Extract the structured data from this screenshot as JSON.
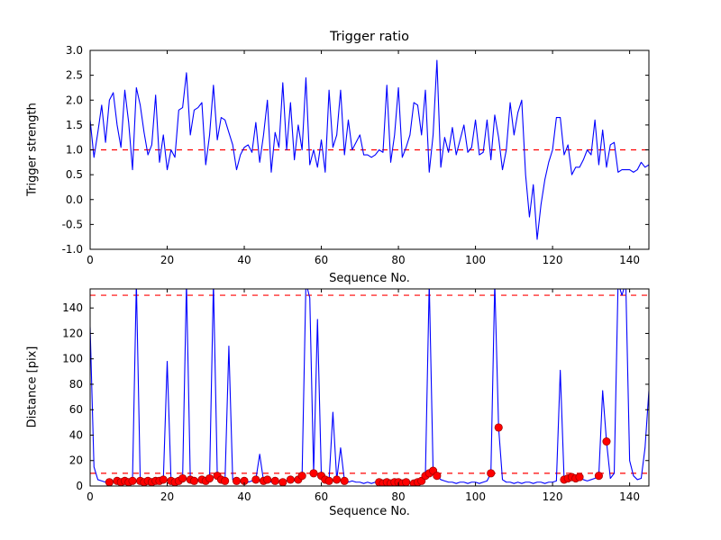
{
  "figure": {
    "background": "#ffffff",
    "axis_color": "#000000",
    "line_color": "#0000ff",
    "dashed_color": "#ff0000",
    "marker_color": "#ff0000",
    "marker_edge": "#990000"
  },
  "chart_data": [
    {
      "type": "line",
      "name": "trigger-ratio",
      "title": "Trigger ratio",
      "xlabel": "Sequence No.",
      "ylabel": "Trigger strength",
      "xlim": [
        0,
        145
      ],
      "ylim": [
        -1.0,
        3.0
      ],
      "xticks": [
        0,
        20,
        40,
        60,
        80,
        100,
        120,
        140
      ],
      "yticks": [
        -1.0,
        -0.5,
        0.0,
        0.5,
        1.0,
        1.5,
        2.0,
        2.5,
        3.0
      ],
      "yticklabels": [
        "-1.0",
        "-0.5",
        "0.0",
        "0.5",
        "1.0",
        "1.5",
        "2.0",
        "2.5",
        "3.0"
      ],
      "grid": false,
      "legend": "none",
      "hlines": [
        1.0
      ],
      "series": [
        {
          "name": "trigger_strength",
          "color": "#0000ff",
          "values": [
            1.6,
            0.85,
            1.35,
            1.9,
            1.15,
            2.0,
            2.15,
            1.5,
            1.05,
            2.2,
            1.55,
            0.6,
            2.25,
            1.9,
            1.35,
            0.9,
            1.1,
            2.1,
            0.75,
            1.3,
            0.6,
            1.0,
            0.85,
            1.8,
            1.85,
            2.55,
            1.3,
            1.8,
            1.85,
            1.95,
            0.7,
            1.3,
            2.3,
            1.2,
            1.65,
            1.6,
            1.35,
            1.1,
            0.6,
            0.9,
            1.05,
            1.1,
            0.95,
            1.55,
            0.75,
            1.3,
            2.0,
            0.55,
            1.35,
            1.05,
            2.35,
            1.0,
            1.95,
            0.8,
            1.5,
            1.0,
            2.45,
            0.7,
            1.0,
            0.65,
            1.2,
            0.55,
            2.2,
            1.05,
            1.3,
            2.2,
            0.9,
            1.6,
            1.0,
            1.15,
            1.3,
            0.9,
            0.9,
            0.85,
            0.9,
            1.0,
            0.95,
            2.3,
            0.75,
            1.3,
            2.25,
            0.85,
            1.05,
            1.3,
            1.95,
            1.9,
            1.3,
            2.2,
            0.55,
            1.3,
            2.8,
            0.65,
            1.25,
            0.95,
            1.45,
            0.9,
            1.2,
            1.5,
            0.95,
            1.05,
            1.6,
            0.9,
            0.95,
            1.6,
            0.8,
            1.7,
            1.25,
            0.6,
            1.0,
            1.95,
            1.3,
            1.75,
            2.0,
            0.5,
            -0.35,
            0.3,
            -0.8,
            -0.1,
            0.4,
            0.75,
            1.0,
            1.65,
            1.65,
            0.9,
            1.1,
            0.5,
            0.65,
            0.65,
            0.8,
            1.0,
            0.9,
            1.6,
            0.7,
            1.4,
            0.65,
            1.1,
            1.15,
            0.55,
            0.6,
            0.6,
            0.6,
            0.55,
            0.6,
            0.75,
            0.65,
            0.7
          ]
        }
      ]
    },
    {
      "type": "line",
      "name": "distance",
      "title": "",
      "xlabel": "Sequence No.",
      "ylabel": "Distance [pix]",
      "xlim": [
        0,
        145
      ],
      "ylim": [
        0,
        155
      ],
      "xticks": [
        0,
        20,
        40,
        60,
        80,
        100,
        120,
        140
      ],
      "yticks": [
        0,
        20,
        40,
        60,
        80,
        100,
        120,
        140
      ],
      "yticklabels": [
        "0",
        "20",
        "40",
        "60",
        "80",
        "100",
        "120",
        "140"
      ],
      "grid": false,
      "legend": "none",
      "hlines": [
        150,
        10
      ],
      "series": [
        {
          "name": "distance_pix",
          "color": "#0000ff",
          "values": [
            125,
            15,
            5,
            4,
            3,
            4,
            3,
            4,
            3,
            4,
            3,
            5,
            160,
            5,
            4,
            3,
            4,
            3,
            4,
            5,
            98,
            4,
            3,
            4,
            6,
            160,
            5,
            4,
            4,
            5,
            4,
            6,
            160,
            8,
            5,
            4,
            110,
            5,
            4,
            3,
            4,
            3,
            4,
            5,
            25,
            4,
            5,
            3,
            4,
            4,
            3,
            4,
            5,
            4,
            5,
            8,
            160,
            148,
            10,
            131,
            8,
            5,
            4,
            58,
            5,
            30,
            4,
            3,
            4,
            3,
            3,
            2,
            3,
            2,
            3,
            3,
            2,
            3,
            2,
            3,
            3,
            2,
            3,
            3,
            2,
            3,
            4,
            8,
            160,
            12,
            8,
            5,
            4,
            3,
            3,
            2,
            3,
            3,
            2,
            3,
            3,
            2,
            3,
            4,
            10,
            160,
            46,
            5,
            3,
            3,
            2,
            3,
            2,
            3,
            3,
            2,
            3,
            3,
            2,
            3,
            3,
            4,
            91,
            5,
            6,
            7,
            6,
            7,
            5,
            4,
            5,
            6,
            8,
            75,
            35,
            6,
            10,
            160,
            150,
            160,
            20,
            8,
            5,
            6,
            30,
            75
          ]
        }
      ],
      "markers": [
        [
          5,
          3
        ],
        [
          7,
          4
        ],
        [
          8,
          3
        ],
        [
          9,
          4
        ],
        [
          10,
          3
        ],
        [
          11,
          4
        ],
        [
          13,
          4
        ],
        [
          14,
          3
        ],
        [
          15,
          4
        ],
        [
          16,
          3
        ],
        [
          17,
          4
        ],
        [
          18,
          4
        ],
        [
          19,
          5
        ],
        [
          21,
          4
        ],
        [
          22,
          3
        ],
        [
          23,
          4
        ],
        [
          24,
          6
        ],
        [
          26,
          5
        ],
        [
          27,
          4
        ],
        [
          29,
          5
        ],
        [
          30,
          4
        ],
        [
          31,
          6
        ],
        [
          33,
          8
        ],
        [
          34,
          5
        ],
        [
          35,
          4
        ],
        [
          38,
          4
        ],
        [
          40,
          4
        ],
        [
          43,
          5
        ],
        [
          45,
          4
        ],
        [
          46,
          5
        ],
        [
          48,
          4
        ],
        [
          50,
          3
        ],
        [
          52,
          5
        ],
        [
          54,
          5
        ],
        [
          55,
          8
        ],
        [
          58,
          10
        ],
        [
          60,
          8
        ],
        [
          61,
          5
        ],
        [
          62,
          4
        ],
        [
          64,
          5
        ],
        [
          66,
          4
        ],
        [
          75,
          3
        ],
        [
          76,
          2
        ],
        [
          77,
          3
        ],
        [
          78,
          2
        ],
        [
          79,
          3
        ],
        [
          80,
          3
        ],
        [
          81,
          2
        ],
        [
          82,
          3
        ],
        [
          84,
          2
        ],
        [
          85,
          3
        ],
        [
          86,
          4
        ],
        [
          87,
          8
        ],
        [
          88,
          10
        ],
        [
          89,
          12
        ],
        [
          90,
          8
        ],
        [
          104,
          10
        ],
        [
          106,
          46
        ],
        [
          123,
          5
        ],
        [
          124,
          6
        ],
        [
          125,
          7
        ],
        [
          126,
          6
        ],
        [
          127,
          7
        ],
        [
          132,
          8
        ],
        [
          134,
          35
        ]
      ]
    }
  ]
}
